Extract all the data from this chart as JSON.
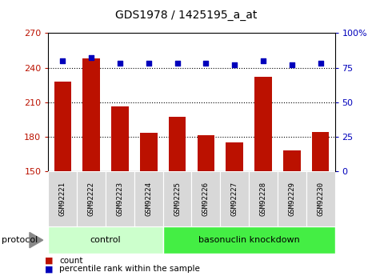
{
  "title": "GDS1978 / 1425195_a_at",
  "samples": [
    "GSM92221",
    "GSM92222",
    "GSM92223",
    "GSM92224",
    "GSM92225",
    "GSM92226",
    "GSM92227",
    "GSM92228",
    "GSM92229",
    "GSM92230"
  ],
  "counts": [
    228,
    248,
    206,
    183,
    197,
    181,
    175,
    232,
    168,
    184
  ],
  "percentile_ranks": [
    80,
    82,
    78,
    78,
    78,
    78,
    77,
    80,
    77,
    78
  ],
  "groups": [
    {
      "label": "control",
      "indices": [
        0,
        1,
        2,
        3
      ]
    },
    {
      "label": "basonuclin knockdown",
      "indices": [
        4,
        5,
        6,
        7,
        8,
        9
      ]
    }
  ],
  "ylim_left": [
    150,
    270
  ],
  "ylim_right": [
    0,
    100
  ],
  "yticks_left": [
    150,
    180,
    210,
    240,
    270
  ],
  "yticks_right": [
    0,
    25,
    50,
    75,
    100
  ],
  "ytick_labels_right": [
    "0",
    "25",
    "50",
    "75",
    "100%"
  ],
  "bar_color": "#bb1100",
  "dot_color": "#0000bb",
  "grid_color": "black",
  "left_tick_color": "#bb1100",
  "right_tick_color": "#0000bb",
  "group_colors": [
    "#ccffcc",
    "#44ee44"
  ],
  "protocol_label": "protocol",
  "legend_items": [
    {
      "color": "#bb1100",
      "marker": "s",
      "label": "count"
    },
    {
      "color": "#0000bb",
      "marker": "s",
      "label": "percentile rank within the sample"
    }
  ],
  "bg_label_color": "#d8d8d8"
}
